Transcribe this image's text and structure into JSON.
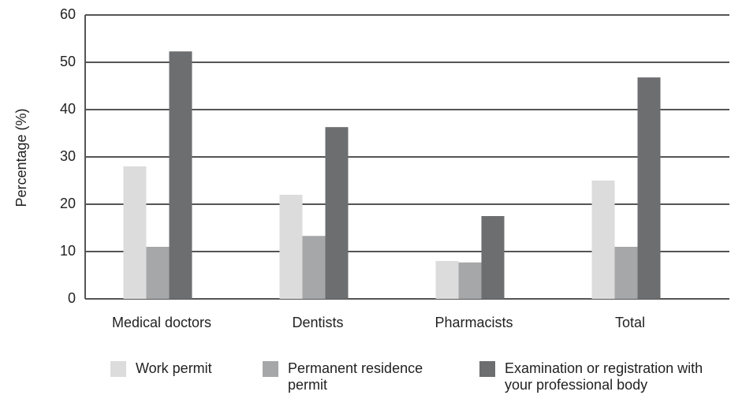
{
  "chart_data": {
    "type": "bar",
    "y_label": "Percentage (%)",
    "categories": [
      "Medical doctors",
      "Dentists",
      "Pharmacists",
      "Total"
    ],
    "series": [
      {
        "name": "Work permit",
        "color": "#dcdcdd",
        "values": [
          28,
          22,
          8,
          25
        ]
      },
      {
        "name": "Permanent residence permit",
        "color": "#a6a7a9",
        "values": [
          11,
          13.3,
          7.7,
          11
        ]
      },
      {
        "name": "Examination or registration with your professional body",
        "color": "#6d6e70",
        "values": [
          52.3,
          36.3,
          17.5,
          46.8
        ]
      }
    ],
    "ylim": [
      0,
      60
    ],
    "yticks": [
      0,
      10,
      20,
      30,
      40,
      50,
      60
    ],
    "grid": true,
    "legend": "bottom"
  }
}
